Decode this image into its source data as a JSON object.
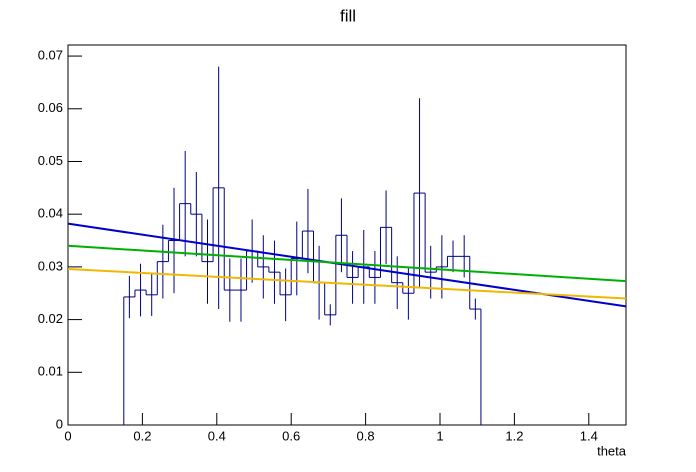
{
  "chart_data": {
    "type": "histogram",
    "title": "fill",
    "x_label": "theta",
    "bins": [
      0.15,
      0.18,
      0.21,
      0.24,
      0.27,
      0.3,
      0.33,
      0.36,
      0.39,
      0.42,
      0.45,
      0.48,
      0.51,
      0.54,
      0.57,
      0.6,
      0.63,
      0.66,
      0.69,
      0.72,
      0.75,
      0.78,
      0.81,
      0.84,
      0.87,
      0.9,
      0.93,
      0.96,
      0.99,
      1.02,
      1.05,
      1.08,
      1.11
    ],
    "values": [
      0.0243,
      0.0256,
      0.0247,
      0.031,
      0.035,
      0.042,
      0.04,
      0.031,
      0.045,
      0.0256,
      0.0256,
      0.033,
      0.03,
      0.029,
      0.0247,
      0.0316,
      0.0368,
      0.027,
      0.0209,
      0.036,
      0.028,
      0.03,
      0.028,
      0.0375,
      0.027,
      0.025,
      0.044,
      0.029,
      0.03,
      0.032,
      0.032,
      0.022
    ],
    "errors": [
      0.004,
      0.005,
      0.004,
      0.007,
      0.01,
      0.01,
      0.008,
      0.008,
      0.023,
      0.006,
      0.006,
      0.006,
      0.006,
      0.006,
      0.005,
      0.007,
      0.008,
      0.007,
      0.002,
      0.007,
      0.005,
      0.007,
      0.005,
      0.007,
      0.005,
      0.005,
      0.018,
      0.005,
      0.006,
      0.003,
      0.004,
      0.002
    ],
    "color": "#000080",
    "lines": [
      {
        "color": "#0000cc",
        "x": [
          0,
          1.5
        ],
        "values": [
          0.0382,
          0.0225
        ]
      },
      {
        "color": "#00b000",
        "x": [
          0,
          1.5
        ],
        "values": [
          0.034,
          0.0273
        ]
      },
      {
        "color": "#f0b800",
        "x": [
          0,
          1.5
        ],
        "values": [
          0.0296,
          0.024
        ]
      }
    ],
    "xlim": [
      0,
      1.5
    ],
    "xticks": [
      0,
      0.2,
      0.4,
      0.6,
      0.8,
      1,
      1.2,
      1.4
    ],
    "ylim": [
      0,
      0.0721
    ],
    "yticks": [
      0,
      0.01,
      0.02,
      0.03,
      0.04,
      0.05,
      0.06,
      0.07
    ]
  }
}
